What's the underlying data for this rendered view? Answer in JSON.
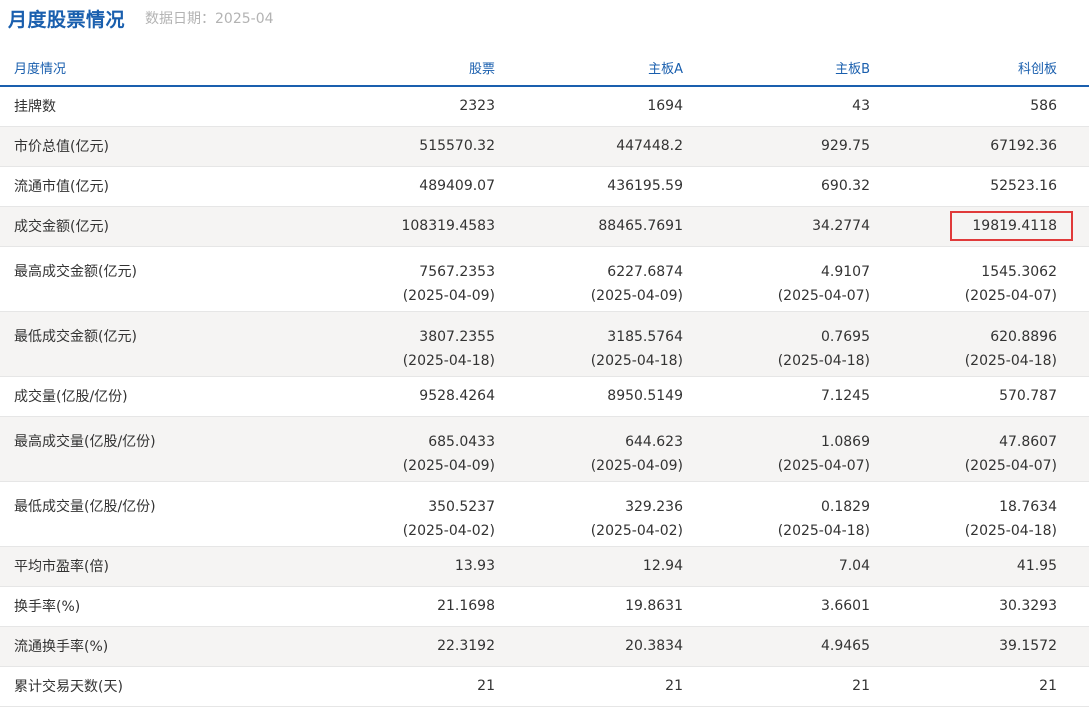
{
  "header": {
    "title": "月度股票情况",
    "date": "数据日期：2025-04"
  },
  "columns": [
    "月度情况",
    "股票",
    "主板A",
    "主板B",
    "科创板"
  ],
  "rows": [
    {
      "label": "挂牌数",
      "cells": [
        [
          "2323"
        ],
        [
          "1694"
        ],
        [
          "43"
        ],
        [
          "586"
        ]
      ]
    },
    {
      "label": "市价总值(亿元)",
      "cells": [
        [
          "515570.32"
        ],
        [
          "447448.2"
        ],
        [
          "929.75"
        ],
        [
          "67192.36"
        ]
      ]
    },
    {
      "label": "流通市值(亿元)",
      "cells": [
        [
          "489409.07"
        ],
        [
          "436195.59"
        ],
        [
          "690.32"
        ],
        [
          "52523.16"
        ]
      ]
    },
    {
      "label": "成交金额(亿元)",
      "cells": [
        [
          "108319.4583"
        ],
        [
          "88465.7691"
        ],
        [
          "34.2774"
        ],
        [
          "19819.4118"
        ]
      ]
    },
    {
      "label": "最高成交金额(亿元)",
      "cells": [
        [
          "7567.2353",
          "(2025-04-09)"
        ],
        [
          "6227.6874",
          "(2025-04-09)"
        ],
        [
          "4.9107",
          "(2025-04-07)"
        ],
        [
          "1545.3062",
          "(2025-04-07)"
        ]
      ]
    },
    {
      "label": "最低成交金额(亿元)",
      "cells": [
        [
          "3807.2355",
          "(2025-04-18)"
        ],
        [
          "3185.5764",
          "(2025-04-18)"
        ],
        [
          "0.7695",
          "(2025-04-18)"
        ],
        [
          "620.8896",
          "(2025-04-18)"
        ]
      ]
    },
    {
      "label": "成交量(亿股/亿份)",
      "cells": [
        [
          "9528.4264"
        ],
        [
          "8950.5149"
        ],
        [
          "7.1245"
        ],
        [
          "570.787"
        ]
      ]
    },
    {
      "label": "最高成交量(亿股/亿份)",
      "cells": [
        [
          "685.0433",
          "(2025-04-09)"
        ],
        [
          "644.623",
          "(2025-04-09)"
        ],
        [
          "1.0869",
          "(2025-04-07)"
        ],
        [
          "47.8607",
          "(2025-04-07)"
        ]
      ]
    },
    {
      "label": "最低成交量(亿股/亿份)",
      "cells": [
        [
          "350.5237",
          "(2025-04-02)"
        ],
        [
          "329.236",
          "(2025-04-02)"
        ],
        [
          "0.1829",
          "(2025-04-18)"
        ],
        [
          "18.7634",
          "(2025-04-18)"
        ]
      ]
    },
    {
      "label": "平均市盈率(倍)",
      "cells": [
        [
          "13.93"
        ],
        [
          "12.94"
        ],
        [
          "7.04"
        ],
        [
          "41.95"
        ]
      ]
    },
    {
      "label": "换手率(%)",
      "cells": [
        [
          "21.1698"
        ],
        [
          "19.8631"
        ],
        [
          "3.6601"
        ],
        [
          "30.3293"
        ]
      ]
    },
    {
      "label": "流通换手率(%)",
      "cells": [
        [
          "22.3192"
        ],
        [
          "20.3834"
        ],
        [
          "4.9465"
        ],
        [
          "39.1572"
        ]
      ]
    },
    {
      "label": "累计交易天数(天)",
      "cells": [
        [
          "21"
        ],
        [
          "21"
        ],
        [
          "21"
        ],
        [
          "21"
        ]
      ]
    }
  ],
  "highlight": {
    "row": 3,
    "col": 3,
    "color": "#e03a3a"
  },
  "colors": {
    "accent": "#1a5fae",
    "stripe": "#f5f4f3"
  }
}
